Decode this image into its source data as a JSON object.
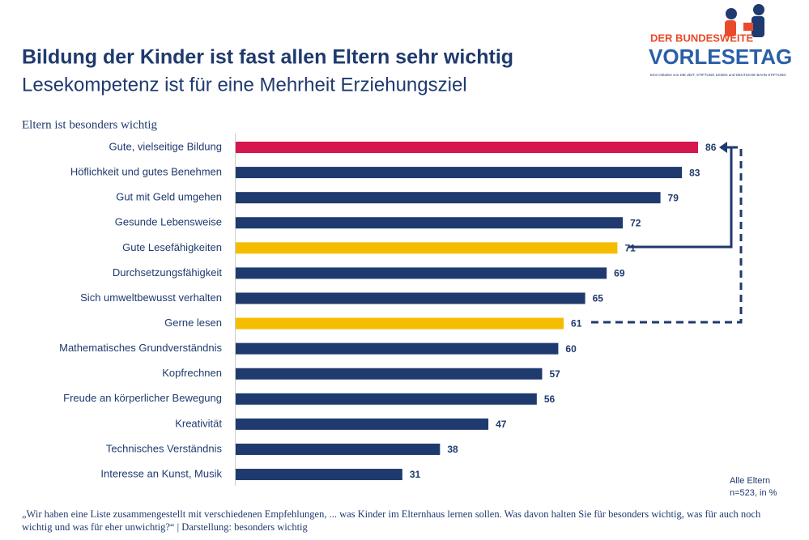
{
  "chart_data": {
    "type": "barh",
    "title": "Bildung der Kinder ist fast allen Eltern sehr wichtig",
    "subtitle": "Lesekompetenz ist für eine Mehrheit Erziehungsziel",
    "axis_title": "Eltern ist besonders wichtig",
    "categories": [
      "Gute, vielseitige Bildung",
      "Höflichkeit und gutes Benehmen",
      "Gut mit Geld umgehen",
      "Gesunde Lebensweise",
      "Gute Lesefähigkeiten",
      "Durchsetzungsfähigkeit",
      "Sich umweltbewusst verhalten",
      "Gerne lesen",
      "Mathematisches Grundverständnis",
      "Kopfrechnen",
      "Freude an körperlicher Bewegung",
      "Kreativität",
      "Technisches Verständnis",
      "Interesse an Kunst, Musik"
    ],
    "values": [
      86,
      83,
      79,
      72,
      71,
      69,
      65,
      61,
      60,
      57,
      56,
      47,
      38,
      31
    ],
    "colors": [
      "#d5164f",
      "#1f3a6e",
      "#1f3a6e",
      "#1f3a6e",
      "#f5bd00",
      "#1f3a6e",
      "#1f3a6e",
      "#f5bd00",
      "#1f3a6e",
      "#1f3a6e",
      "#1f3a6e",
      "#1f3a6e",
      "#1f3a6e",
      "#1f3a6e"
    ],
    "xlim": [
      0,
      100
    ],
    "base_note": [
      "Alle Eltern",
      "n=523, in %"
    ],
    "footnote": "„Wir haben eine Liste zusammengestellt mit verschiedenen Empfehlungen, ... was Kinder im Elternhaus lernen sollen. Was davon halten Sie für besonders wichtig, was für auch noch wichtig und was für eher unwichtig?“ | Darstellung: besonders wichtig"
  },
  "logo": {
    "line1": "DER BUNDESWEITE",
    "line2": "VORLESETAG",
    "tagline": "Eine Initiative von DIE ZEIT, STIFTUNG LESEN und DEUTSCHE BAHN STIFTUNG"
  }
}
